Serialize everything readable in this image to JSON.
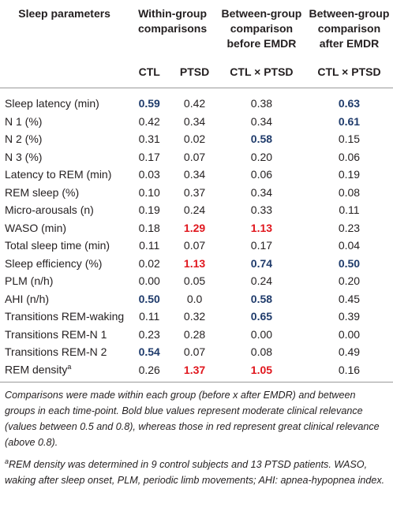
{
  "header": {
    "title": "Sleep parameters",
    "groups": [
      "Within-group comparisons",
      "Between-group comparison before EMDR",
      "Between-group comparison after EMDR"
    ],
    "subheaders": [
      "CTL",
      "PTSD",
      "CTL × PTSD",
      "CTL × PTSD"
    ]
  },
  "table": {
    "rows": [
      {
        "label": "Sleep latency (min)",
        "cells": [
          {
            "text": "0.59",
            "emphasis": "blue"
          },
          {
            "text": "0.42"
          },
          {
            "text": "0.38"
          },
          {
            "text": "0.63",
            "emphasis": "blue"
          }
        ]
      },
      {
        "label": "N 1 (%)",
        "cells": [
          {
            "text": "0.42"
          },
          {
            "text": "0.34"
          },
          {
            "text": "0.34"
          },
          {
            "text": "0.61",
            "emphasis": "blue"
          }
        ]
      },
      {
        "label": "N 2 (%)",
        "cells": [
          {
            "text": "0.31"
          },
          {
            "text": "0.02"
          },
          {
            "text": "0.58",
            "emphasis": "blue"
          },
          {
            "text": "0.15"
          }
        ]
      },
      {
        "label": "N 3 (%)",
        "cells": [
          {
            "text": "0.17"
          },
          {
            "text": "0.07"
          },
          {
            "text": "0.20"
          },
          {
            "text": "0.06"
          }
        ]
      },
      {
        "label": "Latency to REM (min)",
        "cells": [
          {
            "text": "0.03"
          },
          {
            "text": "0.34"
          },
          {
            "text": "0.06"
          },
          {
            "text": "0.19"
          }
        ]
      },
      {
        "label": "REM sleep (%)",
        "cells": [
          {
            "text": "0.10"
          },
          {
            "text": "0.37"
          },
          {
            "text": "0.34"
          },
          {
            "text": "0.08"
          }
        ]
      },
      {
        "label": "Micro-arousals (n)",
        "cells": [
          {
            "text": "0.19"
          },
          {
            "text": "0.24"
          },
          {
            "text": "0.33"
          },
          {
            "text": "0.11"
          }
        ]
      },
      {
        "label": "WASO (min)",
        "cells": [
          {
            "text": "0.18"
          },
          {
            "text": "1.29",
            "emphasis": "red"
          },
          {
            "text": "1.13",
            "emphasis": "red"
          },
          {
            "text": "0.23"
          }
        ]
      },
      {
        "label": "Total sleep time (min)",
        "cells": [
          {
            "text": "0.11"
          },
          {
            "text": "0.07"
          },
          {
            "text": "0.17"
          },
          {
            "text": "0.04"
          }
        ]
      },
      {
        "label": "Sleep efficiency (%)",
        "cells": [
          {
            "text": "0.02"
          },
          {
            "text": "1.13",
            "emphasis": "red"
          },
          {
            "text": "0.74",
            "emphasis": "blue"
          },
          {
            "text": "0.50",
            "emphasis": "blue"
          }
        ]
      },
      {
        "label": "PLM (n/h)",
        "cells": [
          {
            "text": "0.00"
          },
          {
            "text": "0.05"
          },
          {
            "text": "0.24"
          },
          {
            "text": "0.20"
          }
        ]
      },
      {
        "label": "AHI (n/h)",
        "cells": [
          {
            "text": "0.50",
            "emphasis": "blue"
          },
          {
            "text": "0.0"
          },
          {
            "text": "0.58",
            "emphasis": "blue"
          },
          {
            "text": "0.45"
          }
        ]
      },
      {
        "label": "Transitions REM-waking",
        "cells": [
          {
            "text": "0.11"
          },
          {
            "text": "0.32"
          },
          {
            "text": "0.65",
            "emphasis": "blue"
          },
          {
            "text": "0.39"
          }
        ]
      },
      {
        "label": "Transitions REM-N 1",
        "cells": [
          {
            "text": "0.23"
          },
          {
            "text": "0.28"
          },
          {
            "text": "0.00"
          },
          {
            "text": "0.00"
          }
        ]
      },
      {
        "label": "Transitions REM-N 2",
        "cells": [
          {
            "text": "0.54",
            "emphasis": "blue"
          },
          {
            "text": "0.07"
          },
          {
            "text": "0.08"
          },
          {
            "text": "0.49"
          }
        ]
      },
      {
        "label": "REM density",
        "sup": "a",
        "cells": [
          {
            "text": "0.26"
          },
          {
            "text": "1.37",
            "emphasis": "red"
          },
          {
            "text": "1.05",
            "emphasis": "red"
          },
          {
            "text": "0.16"
          }
        ]
      }
    ]
  },
  "footnotes": [
    {
      "text": "Comparisons were made within each group (before x after EMDR) and between groups in each time-point. Bold blue values represent moderate clinical relevance (values between 0.5 and 0.8), whereas those in red represent great clinical relevance (above 0.8)."
    },
    {
      "sup": "a",
      "text": "REM density was determined in 9 control subjects and 13 PTSD patients. WASO, waking after sleep onset, PLM, periodic limb movements; AHI: apnea-hypopnea index."
    }
  ]
}
